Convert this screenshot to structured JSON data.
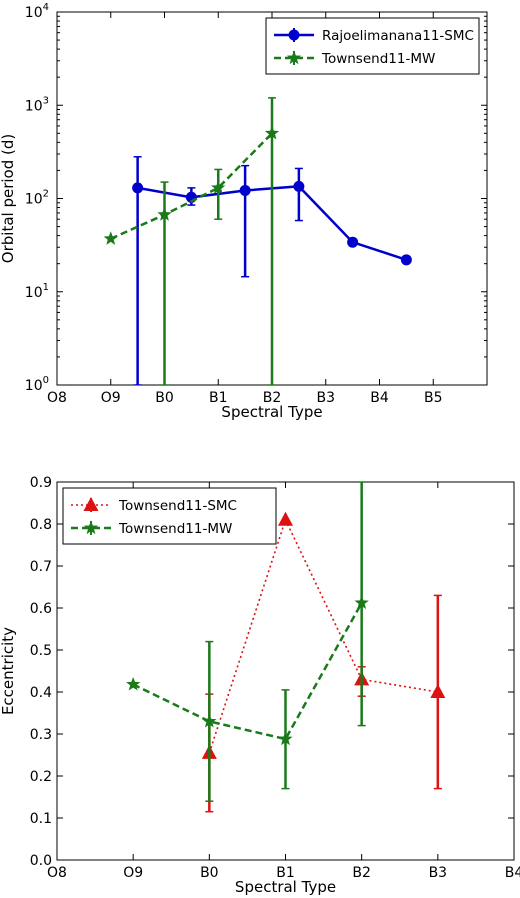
{
  "colors": {
    "blue": "#0000cc",
    "green": "#1a7a1a",
    "red": "#dd1111"
  },
  "chart_data": [
    {
      "type": "line",
      "xlabel": "Spectral Type",
      "ylabel": "Orbital period (d)",
      "yscale": "log",
      "ylim": [
        1,
        10000
      ],
      "xlim": [
        0,
        8
      ],
      "categories": [
        "O8",
        "O9",
        "B0",
        "B1",
        "B2",
        "B3",
        "B4",
        "B5"
      ],
      "y_tick_labels": [
        {
          "base": "10",
          "exp": "0"
        },
        {
          "base": "10",
          "exp": "1"
        },
        {
          "base": "10",
          "exp": "2"
        },
        {
          "base": "10",
          "exp": "3"
        },
        {
          "base": "10",
          "exp": "4"
        }
      ],
      "legend_position": "top-right",
      "series": [
        {
          "name": "Rajoelimanana11-SMC",
          "color": "#0000cc",
          "linestyle": "solid",
          "marker": "circle",
          "points": [
            {
              "x": 1.5,
              "y": 130,
              "err_low": 1,
              "err_high": 280
            },
            {
              "x": 2.5,
              "y": 103,
              "err_low": 85,
              "err_high": 130
            },
            {
              "x": 3.5,
              "y": 122,
              "err_low": 14.5,
              "err_high": 225
            },
            {
              "x": 4.5,
              "y": 135,
              "err_low": 58,
              "err_high": 210
            },
            {
              "x": 5.5,
              "y": 34
            },
            {
              "x": 6.5,
              "y": 22
            }
          ]
        },
        {
          "name": "Townsend11-MW",
          "color": "#1a7a1a",
          "linestyle": "dashed",
          "marker": "star",
          "points": [
            {
              "x": 1,
              "y": 37
            },
            {
              "x": 2,
              "y": 67,
              "err_low": 1,
              "err_high": 150
            },
            {
              "x": 3,
              "y": 130,
              "err_low": 60,
              "err_high": 205
            },
            {
              "x": 4,
              "y": 500,
              "err_low": 1,
              "err_high": 1200
            }
          ]
        }
      ]
    },
    {
      "type": "line",
      "xlabel": "Spectral Type",
      "ylabel": "Eccentricity",
      "ylim": [
        0,
        0.9
      ],
      "xlim": [
        0,
        6
      ],
      "categories": [
        "O8",
        "O9",
        "B0",
        "B1",
        "B2",
        "B3",
        "B4"
      ],
      "y_tick_labels": [
        "0.0",
        "0.1",
        "0.2",
        "0.3",
        "0.4",
        "0.5",
        "0.6",
        "0.7",
        "0.8",
        "0.9"
      ],
      "legend_position": "top-left",
      "series": [
        {
          "name": "Townsend11-SMC",
          "color": "#dd1111",
          "linestyle": "dotted",
          "marker": "triangle",
          "points": [
            {
              "x": 2,
              "y": 0.255,
              "err_low": 0.115,
              "err_high": 0.395
            },
            {
              "x": 3,
              "y": 0.81
            },
            {
              "x": 4,
              "y": 0.43,
              "err_low": 0.39,
              "err_high": 0.46
            },
            {
              "x": 5,
              "y": 0.4,
              "err_low": 0.17,
              "err_high": 0.63
            }
          ]
        },
        {
          "name": "Townsend11-MW",
          "color": "#1a7a1a",
          "linestyle": "dashed",
          "marker": "star",
          "points": [
            {
              "x": 1,
              "y": 0.418
            },
            {
              "x": 2,
              "y": 0.33,
              "err_low": 0.14,
              "err_high": 0.52
            },
            {
              "x": 3,
              "y": 0.288,
              "err_low": 0.17,
              "err_high": 0.405
            },
            {
              "x": 4,
              "y": 0.612,
              "err_low": 0.32,
              "err_high": 0.9
            }
          ]
        }
      ]
    }
  ]
}
